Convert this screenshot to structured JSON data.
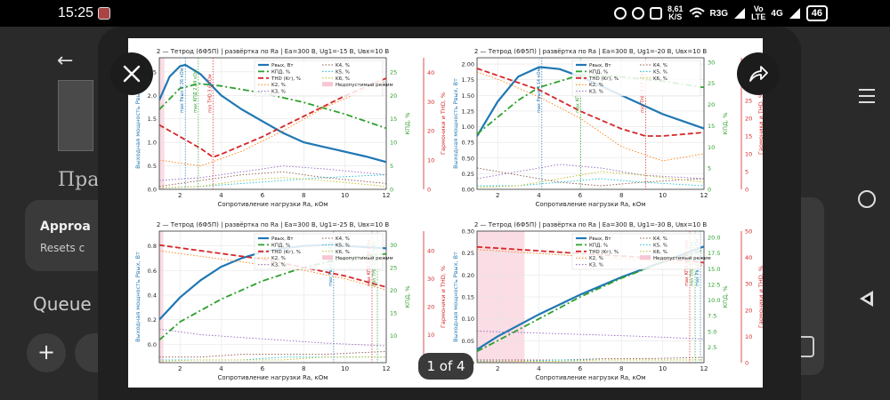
{
  "status_bar": {
    "time": "15:25",
    "app_icon": "gallery-app-icon",
    "speed_value": "8,61",
    "speed_unit": "K/S",
    "network": "R3G",
    "volte_top": "Vo",
    "volte_bottom": "LTE",
    "signal_gen": "4G",
    "battery": "46",
    "icons": [
      "alarm-icon",
      "dnd-icon",
      "nfc-icon",
      "wifi-icon",
      "signal-icon",
      "battery-icon"
    ]
  },
  "background_app": {
    "heading": "Пра",
    "card_title": "Approa",
    "card_subtitle": "Resets c",
    "queue_label": "Queue",
    "plus_label": "+"
  },
  "viewer": {
    "page_counter": "1 of 4",
    "close_icon": "close-icon",
    "share_icon": "share-icon"
  },
  "chart_data": [
    {
      "type": "line",
      "title": "2 — Тетрод (6Ф5П) | развёртка по Ra | Ea=300 В, Ug1=-15 В, Uвх=10 В",
      "xlabel": "Сопротивление нагрузки Ra, кОм",
      "ylabel": "Выходная мощность Рвых, Вт",
      "y2label": "КПД, %",
      "y3label": "Гармоники и THD, %",
      "x_ticks": [
        "2",
        "4",
        "6",
        "8",
        "10",
        "12"
      ],
      "y_ticks": [
        "0.0",
        "0.5",
        "1.0",
        "1.5",
        "2.0",
        "2.5"
      ],
      "y2_ticks": [
        "0",
        "5",
        "10",
        "15",
        "20",
        "25"
      ],
      "y3_ticks": [
        "0",
        "10",
        "20",
        "30",
        "40"
      ],
      "xlim": [
        1,
        12
      ],
      "ylim": [
        0,
        2.8
      ],
      "y2lim": [
        0,
        28
      ],
      "y3lim": [
        0,
        45
      ],
      "legend": [
        "Рвых, Вт",
        "КПД, %",
        "THD (Kг), %",
        "K2, %",
        "K3, %",
        "K4, %",
        "K5, %",
        "K6, %",
        "Недопустимый режим"
      ],
      "annotations": [
        "max Рвых 2.26 кОм",
        "max КПД 2.89 кОм",
        "min THD 3.6 кОм"
      ],
      "forbidden_zone": [
        1,
        1.25
      ],
      "series": [
        {
          "name": "Рвых, Вт",
          "axis": "y",
          "x": [
            1,
            1.5,
            2,
            2.26,
            3,
            4,
            5,
            6,
            7,
            8,
            9,
            10,
            11,
            12
          ],
          "values": [
            1.9,
            2.4,
            2.62,
            2.65,
            2.45,
            2.0,
            1.7,
            1.45,
            1.2,
            1.0,
            0.9,
            0.8,
            0.7,
            0.58
          ]
        },
        {
          "name": "КПД, %",
          "axis": "y2",
          "x": [
            1,
            2,
            2.89,
            4,
            6,
            8,
            10,
            12
          ],
          "values": [
            17,
            21.5,
            22.5,
            22,
            20.5,
            18.5,
            16,
            13
          ]
        },
        {
          "name": "THD (Kг), %",
          "axis": "y3",
          "x": [
            1,
            2,
            3,
            3.6,
            4,
            6,
            8,
            10,
            12
          ],
          "values": [
            22,
            18,
            14,
            11,
            12,
            18,
            25,
            32,
            38
          ]
        },
        {
          "name": "K2, %",
          "axis": "y3",
          "x": [
            1,
            3,
            5,
            7,
            9,
            12
          ],
          "values": [
            10,
            8,
            13,
            20,
            28,
            37
          ]
        },
        {
          "name": "K3, %",
          "axis": "y3",
          "x": [
            1,
            3,
            5,
            7,
            9,
            12
          ],
          "values": [
            3,
            4,
            6,
            8,
            7,
            5
          ]
        },
        {
          "name": "K4, %",
          "axis": "y3",
          "x": [
            1,
            3,
            5,
            7,
            9,
            12
          ],
          "values": [
            1,
            3,
            5,
            6,
            4,
            2
          ]
        },
        {
          "name": "K5, %",
          "axis": "y3",
          "x": [
            1,
            3,
            5,
            7,
            9,
            12
          ],
          "values": [
            0.5,
            1,
            2,
            3,
            4,
            5
          ]
        },
        {
          "name": "K6, %",
          "axis": "y3",
          "x": [
            1,
            3,
            5,
            7,
            9,
            12
          ],
          "values": [
            0.5,
            1,
            3,
            4,
            3,
            1
          ]
        }
      ]
    },
    {
      "type": "line",
      "title": "2 — Тетрод (6Ф5П) | развёртка по Ra | Ea=300 В, Ug1=-20 В, Uвх=10 В",
      "xlabel": "Сопротивление нагрузки Ra, кОм",
      "ylabel": "Выходная мощность Рвых, Вт",
      "y2label": "КПД, %",
      "y3label": "Гармоники и THD, %",
      "x_ticks": [
        "2",
        "4",
        "6",
        "8",
        "10",
        "12"
      ],
      "y_ticks": [
        "0.00",
        "0.25",
        "0.50",
        "0.75",
        "1.00",
        "1.25",
        "1.50",
        "1.75",
        "2.00"
      ],
      "y2_ticks": [
        "0",
        "5",
        "10",
        "15",
        "20",
        "25",
        "30"
      ],
      "y3_ticks": [
        "0",
        "5",
        "10",
        "15",
        "20",
        "25",
        "30",
        "35"
      ],
      "xlim": [
        1,
        12
      ],
      "ylim": [
        0,
        2.1
      ],
      "y2lim": [
        0,
        31
      ],
      "y3lim": [
        0,
        37
      ],
      "legend": [
        "Рвых, Вт",
        "КПД, %",
        "THD (Kг), %",
        "K2, %",
        "K3, %",
        "K4, %",
        "K5, %",
        "K6, %"
      ],
      "annotations": [
        "max Рвых 4.14 кОм",
        "max КПД 6.03 кОм",
        "min THD 9.17 кОм"
      ],
      "series": [
        {
          "name": "Рвых, Вт",
          "axis": "y",
          "x": [
            1,
            2,
            3,
            4,
            4.14,
            5,
            6,
            8,
            10,
            12
          ],
          "values": [
            0.85,
            1.4,
            1.8,
            1.95,
            1.95,
            1.92,
            1.8,
            1.5,
            1.2,
            0.97
          ]
        },
        {
          "name": "КПД, %",
          "axis": "y2",
          "x": [
            1,
            2,
            3,
            4,
            6.03,
            8,
            10,
            12
          ],
          "values": [
            13,
            17,
            21,
            24,
            27,
            26.5,
            25.5,
            24
          ]
        },
        {
          "name": "THD (Kг), %",
          "axis": "y3",
          "x": [
            1,
            2,
            4,
            6,
            8,
            9.17,
            10,
            12
          ],
          "values": [
            34,
            32,
            28,
            22,
            17,
            15,
            15,
            16
          ]
        },
        {
          "name": "K2, %",
          "axis": "y3",
          "x": [
            1,
            2,
            4,
            6,
            8,
            10,
            12
          ],
          "values": [
            33,
            31,
            26,
            20,
            12,
            8,
            10
          ]
        },
        {
          "name": "K3, %",
          "axis": "y3",
          "x": [
            1,
            3,
            5,
            7,
            9,
            12
          ],
          "values": [
            3,
            5,
            7,
            6,
            4,
            3
          ]
        },
        {
          "name": "K4, %",
          "axis": "y3",
          "x": [
            1,
            3,
            5,
            7,
            9,
            12
          ],
          "values": [
            6,
            4,
            2,
            1,
            2,
            3
          ]
        },
        {
          "name": "K5, %",
          "axis": "y3",
          "x": [
            1,
            3,
            5,
            7,
            9,
            12
          ],
          "values": [
            1,
            1,
            2,
            3,
            2,
            1
          ]
        },
        {
          "name": "K6, %",
          "axis": "y3",
          "x": [
            1,
            3,
            5,
            7,
            9,
            12
          ],
          "values": [
            0.5,
            1,
            3,
            5,
            4,
            2
          ]
        }
      ]
    },
    {
      "type": "line",
      "title": "2 — Тетрод (6Ф5П) | развёртка по Ra | Ea=300 В, Ug1=-25 В, Uвх=10 В",
      "xlabel": "Сопротивление нагрузки Ra, кОм",
      "ylabel": "Выходная мощность Рвых, Вт",
      "y2label": "КПД, %",
      "y3label": "Гармоники и THD, %",
      "x_ticks": [
        "2",
        "4",
        "6",
        "8",
        "10",
        "12"
      ],
      "y_ticks": [
        "0.0",
        "0.2",
        "0.4",
        "0.6",
        "0.8"
      ],
      "y2_ticks": [
        "10",
        "15",
        "20",
        "25",
        "30"
      ],
      "y3_ticks": [
        "10",
        "20",
        "30",
        "40"
      ],
      "xlim": [
        1,
        12
      ],
      "ylim": [
        -0.15,
        0.92
      ],
      "y2lim": [
        4,
        33
      ],
      "y3lim": [
        0,
        47
      ],
      "legend": [
        "Рвых, Вт",
        "КПД, %",
        "THD (Kг), %",
        "K2, %",
        "K3, %",
        "K4, %",
        "K5, %",
        "K6, %",
        "Недопустимый режим"
      ],
      "annotations": [
        "max Рвых 9.45 кОм",
        "min THD 12.00 кОм",
        "max КПД 12.00 кОм"
      ],
      "forbidden_zone": [
        1,
        1.2
      ],
      "series": [
        {
          "name": "Рвых, Вт",
          "axis": "y",
          "x": [
            1,
            2,
            3,
            4,
            5,
            6,
            7,
            8,
            9.45,
            10,
            12
          ],
          "values": [
            0.2,
            0.38,
            0.52,
            0.63,
            0.7,
            0.75,
            0.78,
            0.8,
            0.81,
            0.8,
            0.78
          ]
        },
        {
          "name": "КПД, %",
          "axis": "y2",
          "x": [
            1,
            2,
            4,
            6,
            8,
            10,
            12
          ],
          "values": [
            9,
            13,
            18,
            22,
            25,
            27,
            28
          ]
        },
        {
          "name": "THD (Kг), %",
          "axis": "y3",
          "x": [
            1,
            2,
            4,
            6,
            8,
            10,
            12
          ],
          "values": [
            42,
            41,
            39,
            37,
            34,
            31,
            27
          ]
        },
        {
          "name": "K2, %",
          "axis": "y3",
          "x": [
            1,
            2,
            4,
            6,
            8,
            10,
            12
          ],
          "values": [
            40,
            39,
            37,
            35,
            33,
            30,
            26
          ]
        },
        {
          "name": "K3, %",
          "axis": "y3",
          "x": [
            1,
            3,
            5,
            7,
            9,
            12
          ],
          "values": [
            12,
            10,
            9,
            8,
            7,
            6
          ]
        },
        {
          "name": "K4, %",
          "axis": "y3",
          "x": [
            1,
            3,
            5,
            7,
            9,
            12
          ],
          "values": [
            2,
            2,
            3,
            3,
            3,
            4
          ]
        },
        {
          "name": "K5, %",
          "axis": "y3",
          "x": [
            1,
            3,
            5,
            7,
            9,
            12
          ],
          "values": [
            1,
            1,
            1,
            2,
            2,
            2
          ]
        },
        {
          "name": "K6, %",
          "axis": "y3",
          "x": [
            1,
            3,
            5,
            7,
            9,
            12
          ],
          "values": [
            0.5,
            1,
            1,
            1,
            2,
            2
          ]
        }
      ]
    },
    {
      "type": "line",
      "title": "2 — Тетрод (6Ф5П) | развёртка по Ra | Ea=300 В, Ug1=-30 В, Uвх=10 В",
      "xlabel": "Сопротивление нагрузки Ra, кОм",
      "ylabel": "Выходная мощность Рвых, Вт",
      "y2label": "КПД, %",
      "y3label": "Гармоники и THD, %",
      "x_ticks": [
        "2",
        "4",
        "6",
        "8",
        "10",
        "12"
      ],
      "y_ticks": [
        "0.00",
        "0.05",
        "0.10",
        "0.15",
        "0.20",
        "0.25",
        "0.30"
      ],
      "y2_ticks": [
        "2.5",
        "5.0",
        "7.5",
        "10.0",
        "12.5",
        "15.0",
        "17.5",
        "20.0"
      ],
      "y3_ticks": [
        "0",
        "10",
        "20",
        "30",
        "40",
        "50"
      ],
      "xlim": [
        1,
        12
      ],
      "ylim": [
        0,
        0.3
      ],
      "y2lim": [
        0,
        21
      ],
      "y3lim": [
        0,
        50
      ],
      "legend": [
        "Рвых, Вт",
        "КПД, %",
        "THD (Kг), %",
        "K2, %",
        "K3, %",
        "K4, %",
        "K5, %",
        "K6, %",
        "Недопустимый режим"
      ],
      "annotations": [
        "max Рвых 12.00 кОм",
        "min THD 12.00 кОм",
        "max КПД 12.00 кОм"
      ],
      "forbidden_zone": [
        1,
        3.3
      ],
      "series": [
        {
          "name": "Рвых, Вт",
          "axis": "y",
          "x": [
            1,
            2,
            4,
            6,
            8,
            10,
            12
          ],
          "values": [
            0.03,
            0.06,
            0.11,
            0.155,
            0.195,
            0.23,
            0.265
          ]
        },
        {
          "name": "КПД, %",
          "axis": "y2",
          "x": [
            1,
            2,
            4,
            6,
            8,
            10,
            12
          ],
          "values": [
            1.8,
            3.5,
            7,
            10.5,
            13.5,
            16,
            18
          ]
        },
        {
          "name": "THD (Kг), %",
          "axis": "y3",
          "x": [
            1,
            2,
            4,
            6,
            8,
            10,
            12
          ],
          "values": [
            44,
            43.5,
            42.5,
            41.5,
            40.5,
            39.5,
            38
          ]
        },
        {
          "name": "K2, %",
          "axis": "y3",
          "x": [
            1,
            2,
            4,
            6,
            8,
            10,
            12
          ],
          "values": [
            43,
            42.5,
            41.5,
            40.5,
            39.5,
            38.5,
            37
          ]
        },
        {
          "name": "K3, %",
          "axis": "y3",
          "x": [
            1,
            3,
            5,
            7,
            9,
            12
          ],
          "values": [
            12,
            11.5,
            11,
            10.5,
            10,
            9
          ]
        },
        {
          "name": "K4, %",
          "axis": "y3",
          "x": [
            1,
            3,
            5,
            7,
            9,
            12
          ],
          "values": [
            1,
            1,
            1,
            1.5,
            1.5,
            2
          ]
        },
        {
          "name": "K5, %",
          "axis": "y3",
          "x": [
            1,
            3,
            5,
            7,
            9,
            12
          ],
          "values": [
            0.5,
            0.5,
            1,
            1,
            1,
            1
          ]
        },
        {
          "name": "K6, %",
          "axis": "y3",
          "x": [
            1,
            3,
            5,
            7,
            9,
            12
          ],
          "values": [
            0.3,
            0.5,
            0.5,
            1,
            1,
            1
          ]
        }
      ]
    }
  ]
}
